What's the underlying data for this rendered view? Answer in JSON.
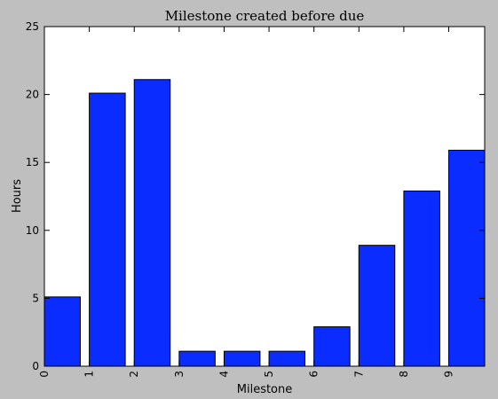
{
  "chart_data": {
    "type": "bar",
    "title": "Milestone created before due",
    "xlabel": "Milestone",
    "ylabel": "Hours",
    "categories": [
      "0",
      "1",
      "2",
      "3",
      "4",
      "5",
      "6",
      "7",
      "8",
      "9"
    ],
    "values": [
      5.1,
      20.1,
      21.1,
      1.1,
      1.1,
      1.1,
      2.9,
      8.9,
      12.9,
      15.9
    ],
    "ylim": [
      0,
      25
    ],
    "yticks": [
      "0",
      "5",
      "10",
      "15",
      "20",
      "25"
    ],
    "grid": false,
    "colors": {
      "bar": "#0b2cff",
      "background": "#bfbfbf",
      "plot": "#ffffff"
    }
  }
}
